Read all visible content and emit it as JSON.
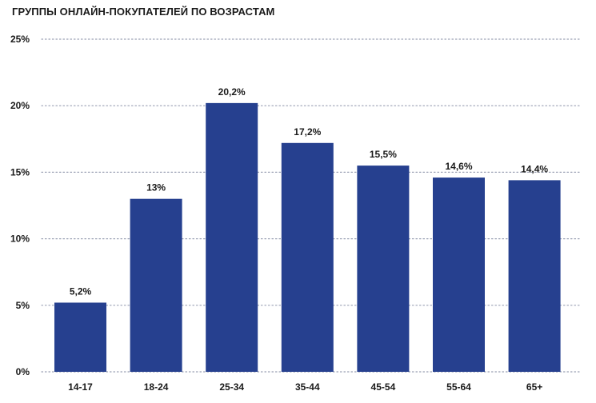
{
  "chart_data": {
    "type": "bar",
    "title": "ГРУППЫ ОНЛАЙН-ПОКУПАТЕЛЕЙ ПО ВОЗРАСТАМ",
    "xlabel": "",
    "ylabel": "",
    "categories": [
      "14-17",
      "18-24",
      "25-34",
      "35-44",
      "45-54",
      "55-64",
      "65+"
    ],
    "values": [
      5.2,
      13,
      20.2,
      17.2,
      15.5,
      14.6,
      14.4
    ],
    "value_labels": [
      "5,2%",
      "13%",
      "20,2%",
      "17,2%",
      "15,5%",
      "14,6%",
      "14,4%"
    ],
    "y_ticks": [
      0,
      5,
      10,
      15,
      20,
      25
    ],
    "y_tick_labels": [
      "0%",
      "5%",
      "10%",
      "15%",
      "20%",
      "25%"
    ],
    "ylim": [
      0,
      25
    ],
    "grid": "horizontal-dotted",
    "legend": "none",
    "bar_color": "#26408f",
    "grid_color": "#9aa0b4"
  }
}
